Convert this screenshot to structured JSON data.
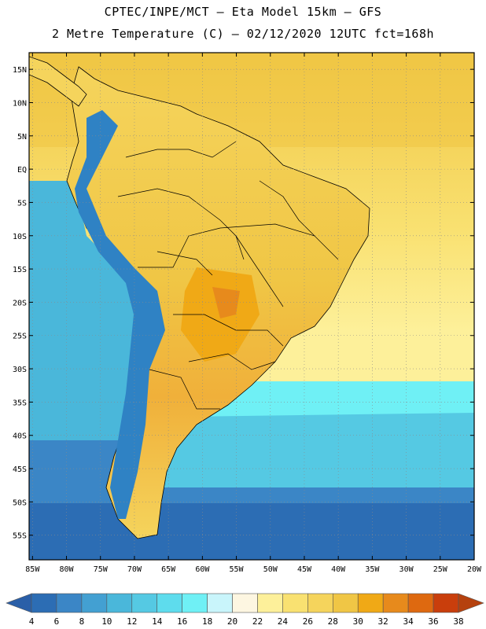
{
  "title_line1": "CPTEC/INPE/MCT –  Eta Model 15km – GFS",
  "title_line2": "2 Metre Temperature (C) – 02/12/2020 12UTC fct=168h",
  "map": {
    "lat_labels": [
      "15N",
      "10N",
      "5N",
      "EQ",
      "5S",
      "10S",
      "15S",
      "20S",
      "25S",
      "30S",
      "35S",
      "40S",
      "45S",
      "50S",
      "55S"
    ],
    "lon_labels": [
      "85W",
      "80W",
      "75W",
      "70W",
      "65W",
      "60W",
      "55W",
      "50W",
      "45W",
      "40W",
      "35W",
      "30W",
      "25W",
      "20W"
    ],
    "colors": {
      "ocean_cold": "#3aa6cf",
      "ocean_mid": "#4ccadf",
      "ocean_warm": "#fff6a8",
      "land_hot": "#f2c94c",
      "land_hotter": "#f0a93a",
      "andes": "#2f82c4",
      "southern_ocean": "#2a5fa8",
      "border": "#000000",
      "grid": "#9a9a9a"
    }
  },
  "colorbar": {
    "labels": [
      "4",
      "6",
      "8",
      "10",
      "12",
      "14",
      "16",
      "18",
      "20",
      "22",
      "24",
      "26",
      "28",
      "30",
      "32",
      "34",
      "36",
      "38"
    ],
    "colors": [
      "#2c6db4",
      "#3b86c6",
      "#43a0d2",
      "#4ab7da",
      "#55c9e3",
      "#5edced",
      "#6ff0f5",
      "#c9f5fb",
      "#fdf6e1",
      "#fdf09a",
      "#f9e171",
      "#f5d45c",
      "#f0c645",
      "#f0a916",
      "#e78a1c",
      "#de6910",
      "#c93e0c"
    ],
    "low_arrow_color": "#2a5fa8",
    "high_arrow_color": "#b5410e"
  }
}
